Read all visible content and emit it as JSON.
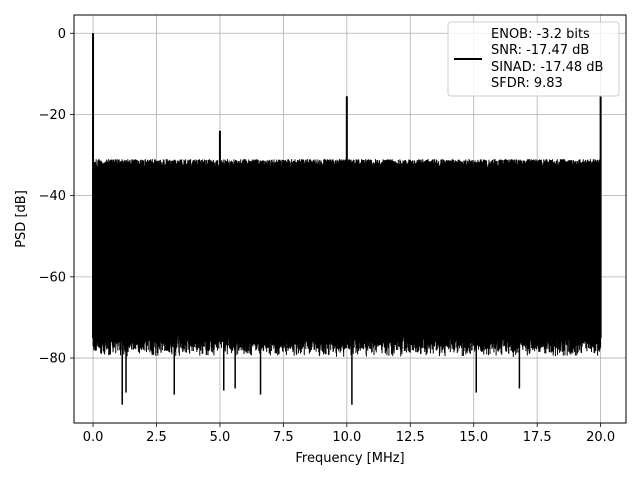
{
  "chart_data": {
    "type": "line",
    "xlabel": "Frequency [MHz]",
    "ylabel": "PSD [dB]",
    "xlim": [
      -0.75,
      21.0
    ],
    "ylim": [
      -96,
      4.5
    ],
    "xticks": [
      0,
      2.5,
      5,
      7.5,
      10,
      12.5,
      15,
      17.5,
      20
    ],
    "xtick_labels": [
      "0.0",
      "2.5",
      "5.0",
      "7.5",
      "10.0",
      "12.5",
      "15.0",
      "17.5",
      "20.0"
    ],
    "yticks": [
      0,
      -20,
      -40,
      -60,
      -80
    ],
    "ytick_labels": [
      "0",
      "−20",
      "−40",
      "−60",
      "−80"
    ],
    "grid": true,
    "legend_position": "top-right",
    "series_color": "#000000",
    "series": [
      {
        "name": "ENOB: -3.2 bits\nSNR: -17.47 dB\nSINAD: -17.48 dB\nSFDR: 9.83",
        "legend_lines": [
          "ENOB: -3.2 bits",
          "SNR: -17.47 dB",
          "SINAD: -17.48 dB",
          "SFDR: 9.83"
        ],
        "noise_floor_upper_db": -31,
        "noise_floor_lower_db": -75,
        "noise_floor_min_db": -91.5,
        "peaks": [
          {
            "x": 0.0,
            "y": 0.0
          },
          {
            "x": 5.0,
            "y": -24
          },
          {
            "x": 10.0,
            "y": -15.5
          },
          {
            "x": 20.0,
            "y": -15.5
          }
        ],
        "deep_dips": [
          {
            "x": 1.15,
            "y": -91.5
          },
          {
            "x": 1.3,
            "y": -88.5
          },
          {
            "x": 3.2,
            "y": -89
          },
          {
            "x": 5.15,
            "y": -88
          },
          {
            "x": 5.6,
            "y": -87.5
          },
          {
            "x": 6.6,
            "y": -89
          },
          {
            "x": 10.2,
            "y": -91.5
          },
          {
            "x": 15.1,
            "y": -88.5
          },
          {
            "x": 16.8,
            "y": -87.5
          }
        ]
      }
    ]
  }
}
